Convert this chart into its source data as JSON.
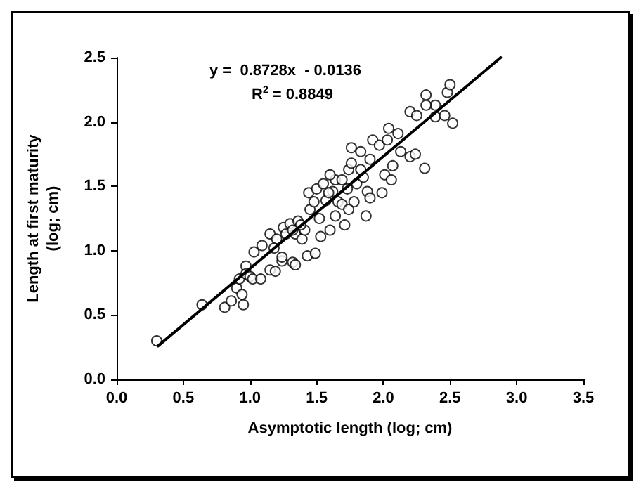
{
  "chart_data": {
    "type": "scatter",
    "xlabel": "Asymptotic length (log; cm)",
    "ylabel": "Length at first maturity\n(log; cm)",
    "annotations": [
      "y =  0.8728x  - 0.0136",
      "R$^{2}$ = 0.8849"
    ],
    "xlim": [
      0,
      3.5
    ],
    "xticks": [
      {
        "value": 0,
        "label": "0.0"
      },
      {
        "value": 0.5,
        "label": "0.5"
      },
      {
        "value": 1,
        "label": "1.0"
      },
      {
        "value": 1.5,
        "label": "1.5"
      },
      {
        "value": 2,
        "label": "2.0"
      },
      {
        "value": 2.5,
        "label": "2.5"
      },
      {
        "value": 3,
        "label": "3.0"
      },
      {
        "value": 3.5,
        "label": "3.5"
      }
    ],
    "ylim": [
      0,
      2.5
    ],
    "yticks": [
      {
        "value": 0,
        "label": "0.0"
      },
      {
        "value": 0.5,
        "label": "0.5"
      },
      {
        "value": 1,
        "label": "1.0"
      },
      {
        "value": 1.5,
        "label": "1.5"
      },
      {
        "value": 2,
        "label": "2.0"
      },
      {
        "value": 2.5,
        "label": "2.5"
      }
    ],
    "grid": false,
    "marker": "circle",
    "series": [
      {
        "color": "#000000",
        "x": [
          0.3,
          0.64,
          0.81,
          0.86,
          0.9,
          0.94,
          0.95,
          0.92,
          0.97,
          0.97,
          1.0,
          1.02,
          1.08,
          1.03,
          1.09,
          1.15,
          1.19,
          1.24,
          1.24,
          1.15,
          1.2,
          1.18,
          1.25,
          1.3,
          1.32,
          1.34,
          1.34,
          1.36,
          1.39,
          1.43,
          1.49,
          1.41,
          1.45,
          1.44,
          1.5,
          1.53,
          1.52,
          1.55,
          1.57,
          1.6,
          1.62,
          1.64,
          1.66,
          1.69,
          1.71,
          1.73,
          1.74,
          1.76,
          1.78,
          1.8,
          1.83,
          1.85,
          1.88,
          1.9,
          1.9,
          1.92,
          1.97,
          1.99,
          2.01,
          2.03,
          2.04,
          2.06,
          2.07,
          2.11,
          2.13,
          2.2,
          2.24,
          2.2,
          2.25,
          2.31,
          2.32,
          2.39,
          2.39,
          2.46,
          2.48,
          2.5,
          2.52,
          2.32,
          1.48,
          1.59,
          1.69,
          1.83,
          1.38,
          1.27,
          1.32,
          1.64,
          1.74,
          1.87,
          1.76,
          1.6
        ],
        "values": [
          0.3,
          0.58,
          0.56,
          0.61,
          0.71,
          0.66,
          0.58,
          0.78,
          0.88,
          0.82,
          0.8,
          0.78,
          0.78,
          0.99,
          1.04,
          0.85,
          0.84,
          0.92,
          0.95,
          1.13,
          1.09,
          1.02,
          1.18,
          1.21,
          0.91,
          0.89,
          1.13,
          1.23,
          1.09,
          0.96,
          0.98,
          1.16,
          1.32,
          1.45,
          1.48,
          1.11,
          1.25,
          1.52,
          1.39,
          1.16,
          1.46,
          1.55,
          1.38,
          1.36,
          1.2,
          1.48,
          1.63,
          1.68,
          1.38,
          1.52,
          1.77,
          1.57,
          1.46,
          1.41,
          1.71,
          1.86,
          1.82,
          1.45,
          1.59,
          1.86,
          1.95,
          1.55,
          1.66,
          1.91,
          1.77,
          1.73,
          1.75,
          2.08,
          2.05,
          1.64,
          2.21,
          2.13,
          2.04,
          2.05,
          2.23,
          2.29,
          1.99,
          2.13,
          1.38,
          1.45,
          1.55,
          1.63,
          1.2,
          1.13,
          1.16,
          1.27,
          1.32,
          1.27,
          1.8,
          1.59
        ]
      },
      {
        "type": "line",
        "color": "#000000",
        "marker": "none",
        "line_style": "solid",
        "x": [
          0.31,
          2.88
        ],
        "values": [
          0.26,
          2.5
        ]
      }
    ]
  }
}
